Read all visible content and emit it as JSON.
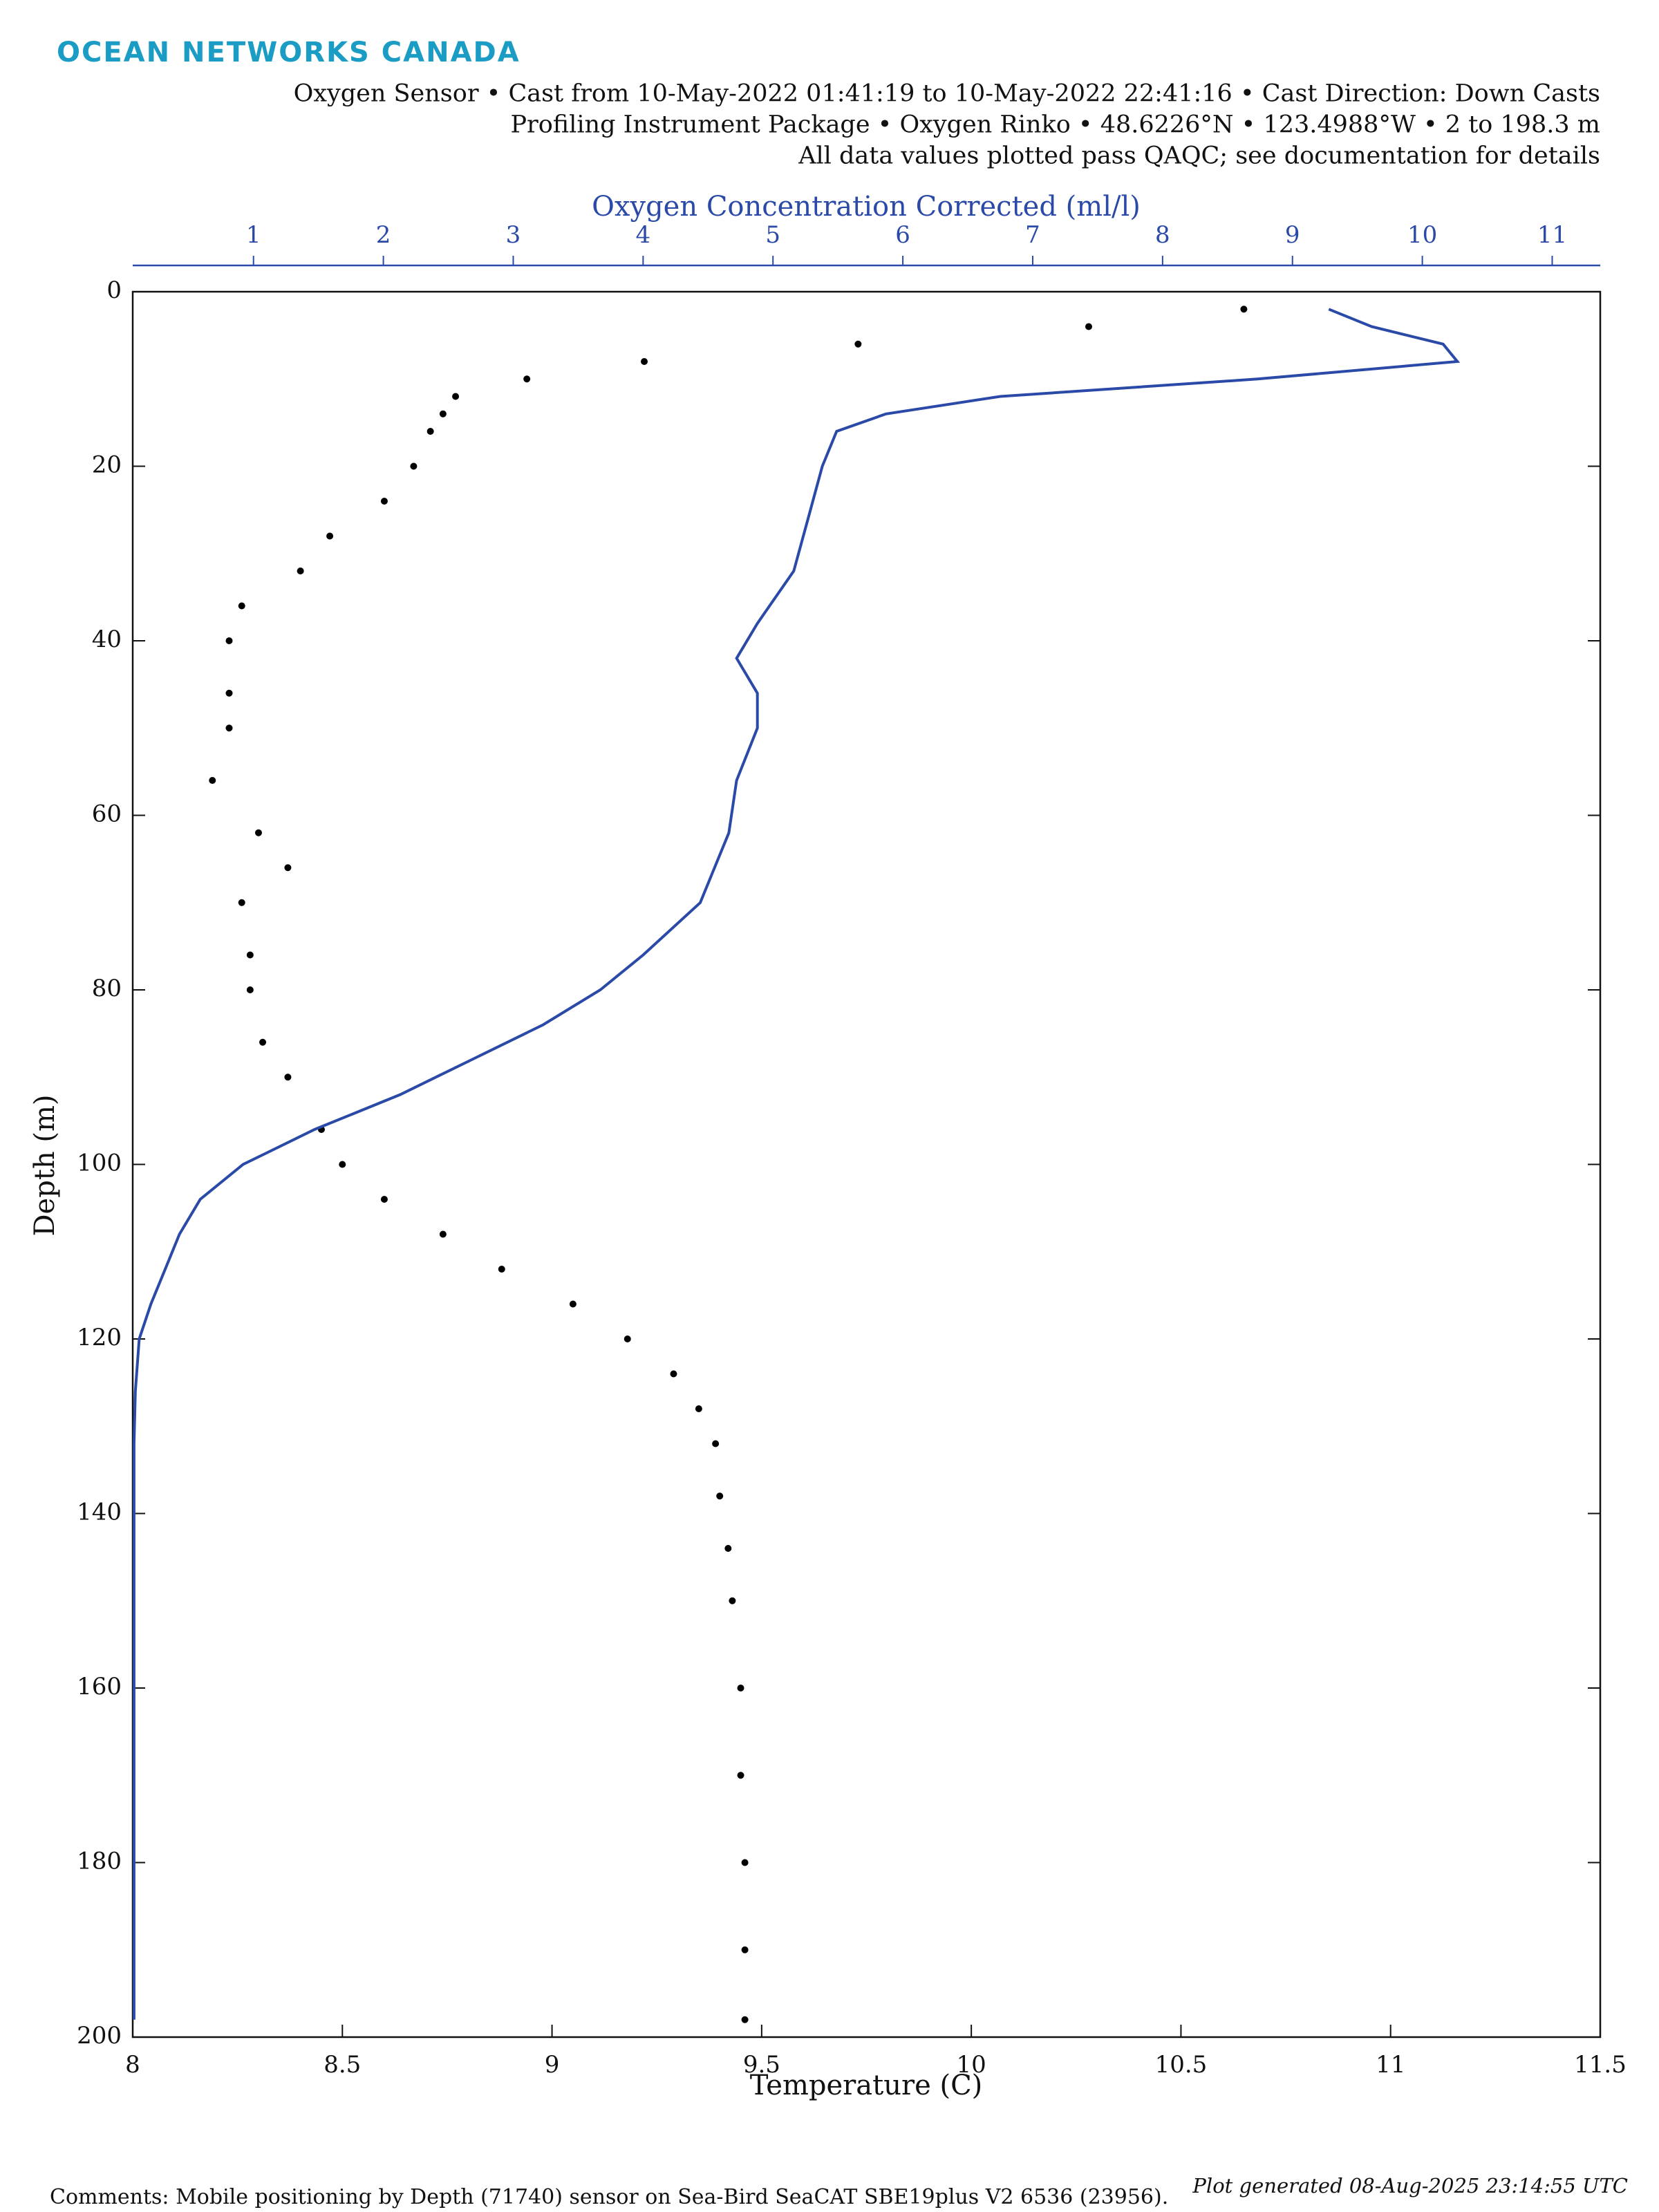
{
  "header": "OCEAN NETWORKS CANADA",
  "chart_data": {
    "type": "scatter",
    "subtitle": [
      "Oxygen Sensor • Cast from 10-May-2022 01:41:19 to 10-May-2022 22:41:16 • Cast Direction: Down Casts",
      "Profiling Instrument Package • Oxygen Rinko • 48.6226°N • 123.4988°W • 2 to 198.3 m",
      "All data values plotted pass QAQC; see documentation for details"
    ],
    "x_label": "Temperature (C)",
    "x2_label": "Oxygen Concentration Corrected (ml/l)",
    "y_label": "Depth (m)",
    "xlim": [
      8,
      11.5
    ],
    "xticks": [
      8,
      8.5,
      9,
      9.5,
      10,
      10.5,
      11,
      11.5
    ],
    "x2lim": [
      0.07,
      11.37
    ],
    "x2ticks": [
      1,
      2,
      3,
      4,
      5,
      6,
      7,
      8,
      9,
      10,
      11
    ],
    "ylim": [
      200,
      0
    ],
    "yticks": [
      0,
      20,
      40,
      60,
      80,
      100,
      120,
      140,
      160,
      180,
      200
    ],
    "series": [
      {
        "color": "#000000",
        "marker": "dot",
        "x": [
          10.65,
          10.28,
          9.73,
          9.22,
          8.94,
          8.77,
          8.74,
          8.71,
          8.67,
          8.6,
          8.47,
          8.4,
          8.26,
          8.23,
          8.23,
          8.23,
          8.19,
          8.3,
          8.37,
          8.26,
          8.28,
          8.28,
          8.31,
          8.37,
          8.45,
          8.5,
          8.6,
          8.74,
          8.88,
          9.05,
          9.18,
          9.29,
          9.35,
          9.39,
          9.4,
          9.42,
          9.43,
          9.45,
          9.45,
          9.46,
          9.46,
          9.46
        ],
        "values": [
          2,
          4,
          6,
          8,
          10,
          12,
          14,
          16,
          20,
          24,
          28,
          32,
          36,
          40,
          46,
          50,
          56,
          62,
          66,
          70,
          76,
          80,
          86,
          90,
          96,
          100,
          104,
          108,
          112,
          116,
          120,
          124,
          128,
          132,
          138,
          144,
          150,
          160,
          170,
          180,
          190,
          198
        ]
      },
      {
        "color": "#2b4aa8",
        "marker": "line",
        "axis": "x2",
        "x": [
          9.28,
          9.61,
          10.16,
          10.27,
          8.73,
          6.75,
          5.87,
          5.49,
          5.38,
          5.27,
          5.16,
          4.88,
          4.72,
          4.88,
          4.88,
          4.72,
          4.66,
          4.55,
          4.44,
          4.0,
          3.67,
          3.23,
          2.68,
          2.13,
          1.47,
          0.92,
          0.59,
          0.43,
          0.32,
          0.21,
          0.12,
          0.09,
          0.08,
          0.08,
          0.08,
          0.08,
          0.08
        ],
        "values": [
          2,
          4,
          6,
          8,
          10,
          12,
          14,
          16,
          20,
          26,
          32,
          38,
          42,
          46,
          50,
          56,
          62,
          66,
          70,
          76,
          80,
          84,
          88,
          92,
          96,
          100,
          104,
          108,
          112,
          116,
          120,
          126,
          132,
          140,
          160,
          180,
          198
        ]
      }
    ]
  },
  "footer": {
    "comment": "Comments: Mobile positioning by Depth (71740) sensor on Sea-Bird SeaCAT SBE19plus V2 6536 (23956).",
    "generated": "Plot generated 08-Aug-2025 23:14:55 UTC"
  }
}
